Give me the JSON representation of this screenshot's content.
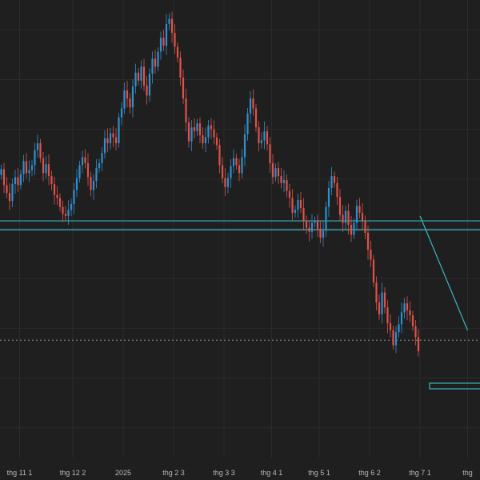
{
  "chart_data": {
    "type": "candlestick",
    "grid": true,
    "colors": {
      "background": "#1f1f1f",
      "grid": "#2b2b2b",
      "up": "#2f8fcf",
      "down": "#e0524a",
      "level": "#39b7c2",
      "dotted": "#8f8f8f",
      "tick_label": "#b8b8b8"
    },
    "x_ticks": [
      {
        "label": "thg 11 1",
        "i": 7
      },
      {
        "label": "thg 12 2",
        "i": 26
      },
      {
        "label": "2025",
        "i": 44
      },
      {
        "label": "thg 2 3",
        "i": 62
      },
      {
        "label": "thg 3 3",
        "i": 80
      },
      {
        "label": "thg 4 1",
        "i": 97
      },
      {
        "label": "thg 5 1",
        "i": 114
      },
      {
        "label": "thg 6 2",
        "i": 132
      },
      {
        "label": "thg 7 1",
        "i": 150
      },
      {
        "label": "thg",
        "i": 167
      }
    ],
    "y_range": [
      72,
      118
    ],
    "close": [
      101,
      99.4,
      98.6,
      97.8,
      99.5,
      100.2,
      99.4,
      100.5,
      101.8,
      100.6,
      100.9,
      101.4,
      102.9,
      103.6,
      102.1,
      100.6,
      101.5,
      100.3,
      99.5,
      98.4,
      98.1,
      97.2,
      96.5,
      96.3,
      96.9,
      97.5,
      98.9,
      100.1,
      101.4,
      102.2,
      101.6,
      100.2,
      98.9,
      99.8,
      101.1,
      101.6,
      102.6,
      104.1,
      103.6,
      104.6,
      104.2,
      103.6,
      106.2,
      107.1,
      108.9,
      108.1,
      107.2,
      109.3,
      110.7,
      109.9,
      111.3,
      109.4,
      108.4,
      110.6,
      112.1,
      111.3,
      112.8,
      114.2,
      113.4,
      115.6,
      116.1,
      114.7,
      113.3,
      112.2,
      110.2,
      108.1,
      105.7,
      103.8,
      105.2,
      104.8,
      105.6,
      104.4,
      103.6,
      104.2,
      105.4,
      105.0,
      104.2,
      103.4,
      101.4,
      100.1,
      99.2,
      100.1,
      101.3,
      102.1,
      101.4,
      100.6,
      102.2,
      104.5,
      106.6,
      108.1,
      107.1,
      105.2,
      103.6,
      103.9,
      104.8,
      103.5,
      101.6,
      100.2,
      101.1,
      100.3,
      99.6,
      99.9,
      98.8,
      98.1,
      96.6,
      96.9,
      97.9,
      97.1,
      95.8,
      95.1,
      94.7,
      95.6,
      95.8,
      95.0,
      94.1,
      94.8,
      97.2,
      99.1,
      100.3,
      99.6,
      98.2,
      96.4,
      95.6,
      96.8,
      95.4,
      94.4,
      95.6,
      97.3,
      96.6,
      95.8,
      94.6,
      92.9,
      91.9,
      89.6,
      87.6,
      86.4,
      88.6,
      87.1,
      85.5,
      84.8,
      83.3,
      84.6,
      85.4,
      86.6,
      87.5,
      86.8,
      86.3,
      85.2,
      84.1,
      82.7
    ],
    "levels": [
      {
        "name": "support-band-upper",
        "y": 95.8
      },
      {
        "name": "support-band-lower",
        "y": 94.9
      },
      {
        "name": "dotted-line",
        "y": 83.8
      },
      {
        "name": "box-level",
        "y": 79.2
      }
    ],
    "trendline": {
      "from": {
        "i": 150,
        "y": 96.3
      },
      "to": {
        "i": 167,
        "y": 84.8
      }
    }
  }
}
